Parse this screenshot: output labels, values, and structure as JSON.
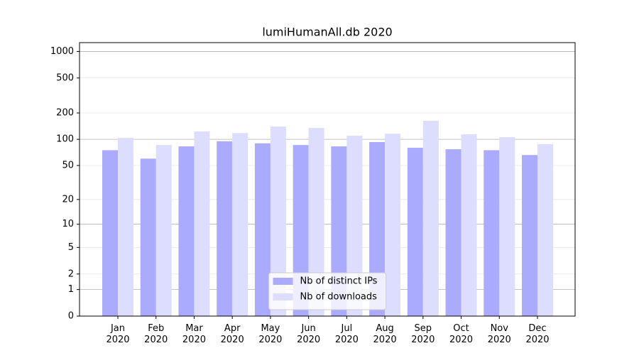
{
  "chart_data": {
    "type": "bar",
    "title": "lumiHumanAll.db 2020",
    "categories": [
      "Jan\n2020",
      "Feb\n2020",
      "Mar\n2020",
      "Apr\n2020",
      "May\n2020",
      "Jun\n2020",
      "Jul\n2020",
      "Aug\n2020",
      "Sep\n2020",
      "Oct\n2020",
      "Nov\n2020",
      "Dec\n2020"
    ],
    "series": [
      {
        "name": "Nb of distinct IPs",
        "color": "#aaaaff",
        "values": [
          75,
          60,
          83,
          95,
          90,
          86,
          83,
          93,
          80,
          77,
          75,
          66
        ]
      },
      {
        "name": "Nb of downloads",
        "color": "#ddddff",
        "values": [
          104,
          86,
          123,
          118,
          140,
          135,
          110,
          116,
          163,
          114,
          106,
          88
        ]
      }
    ],
    "yscale": "log1p",
    "ylim": [
      0,
      1260
    ],
    "yticks": [
      0,
      1,
      2,
      5,
      10,
      20,
      50,
      100,
      200,
      500,
      1000
    ],
    "grid": true,
    "legend": "lower center"
  }
}
